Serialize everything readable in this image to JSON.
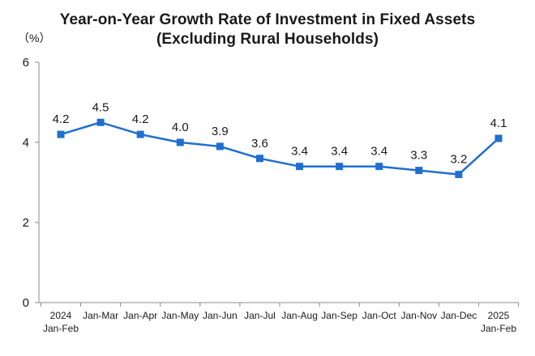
{
  "chart_data": {
    "type": "line",
    "title": "Year-on-Year Growth Rate of Investment in Fixed Assets",
    "subtitle": "(Excluding Rural Households)",
    "ylabel": "（%）",
    "xlabel": "",
    "ylim": [
      0,
      6
    ],
    "yticks": [
      0,
      2,
      4,
      6
    ],
    "grid": false,
    "categories": [
      [
        "2024",
        "Jan-Feb"
      ],
      [
        "Jan-Mar"
      ],
      [
        "Jan-Apr"
      ],
      [
        "Jan-May"
      ],
      [
        "Jan-Jun"
      ],
      [
        "Jan-Jul"
      ],
      [
        "Jan-Aug"
      ],
      [
        "Jan-Sep"
      ],
      [
        "Jan-Oct"
      ],
      [
        "Jan-Nov"
      ],
      [
        "Jan-Dec"
      ],
      [
        "2025",
        "Jan-Feb"
      ]
    ],
    "series": [
      {
        "name": "Year-on-Year Growth Rate",
        "values": [
          4.2,
          4.5,
          4.2,
          4.0,
          3.9,
          3.6,
          3.4,
          3.4,
          3.4,
          3.3,
          3.2,
          4.1
        ],
        "labels": [
          "4.2",
          "4.5",
          "4.2",
          "4.0",
          "3.9",
          "3.6",
          "3.4",
          "3.4",
          "3.4",
          "3.3",
          "3.2",
          "4.1"
        ],
        "color": "#1f6fcf"
      }
    ]
  },
  "colors": {
    "axis": "#8c8c8c",
    "text": "#1a1a1a",
    "series": "#1f6fcf"
  }
}
